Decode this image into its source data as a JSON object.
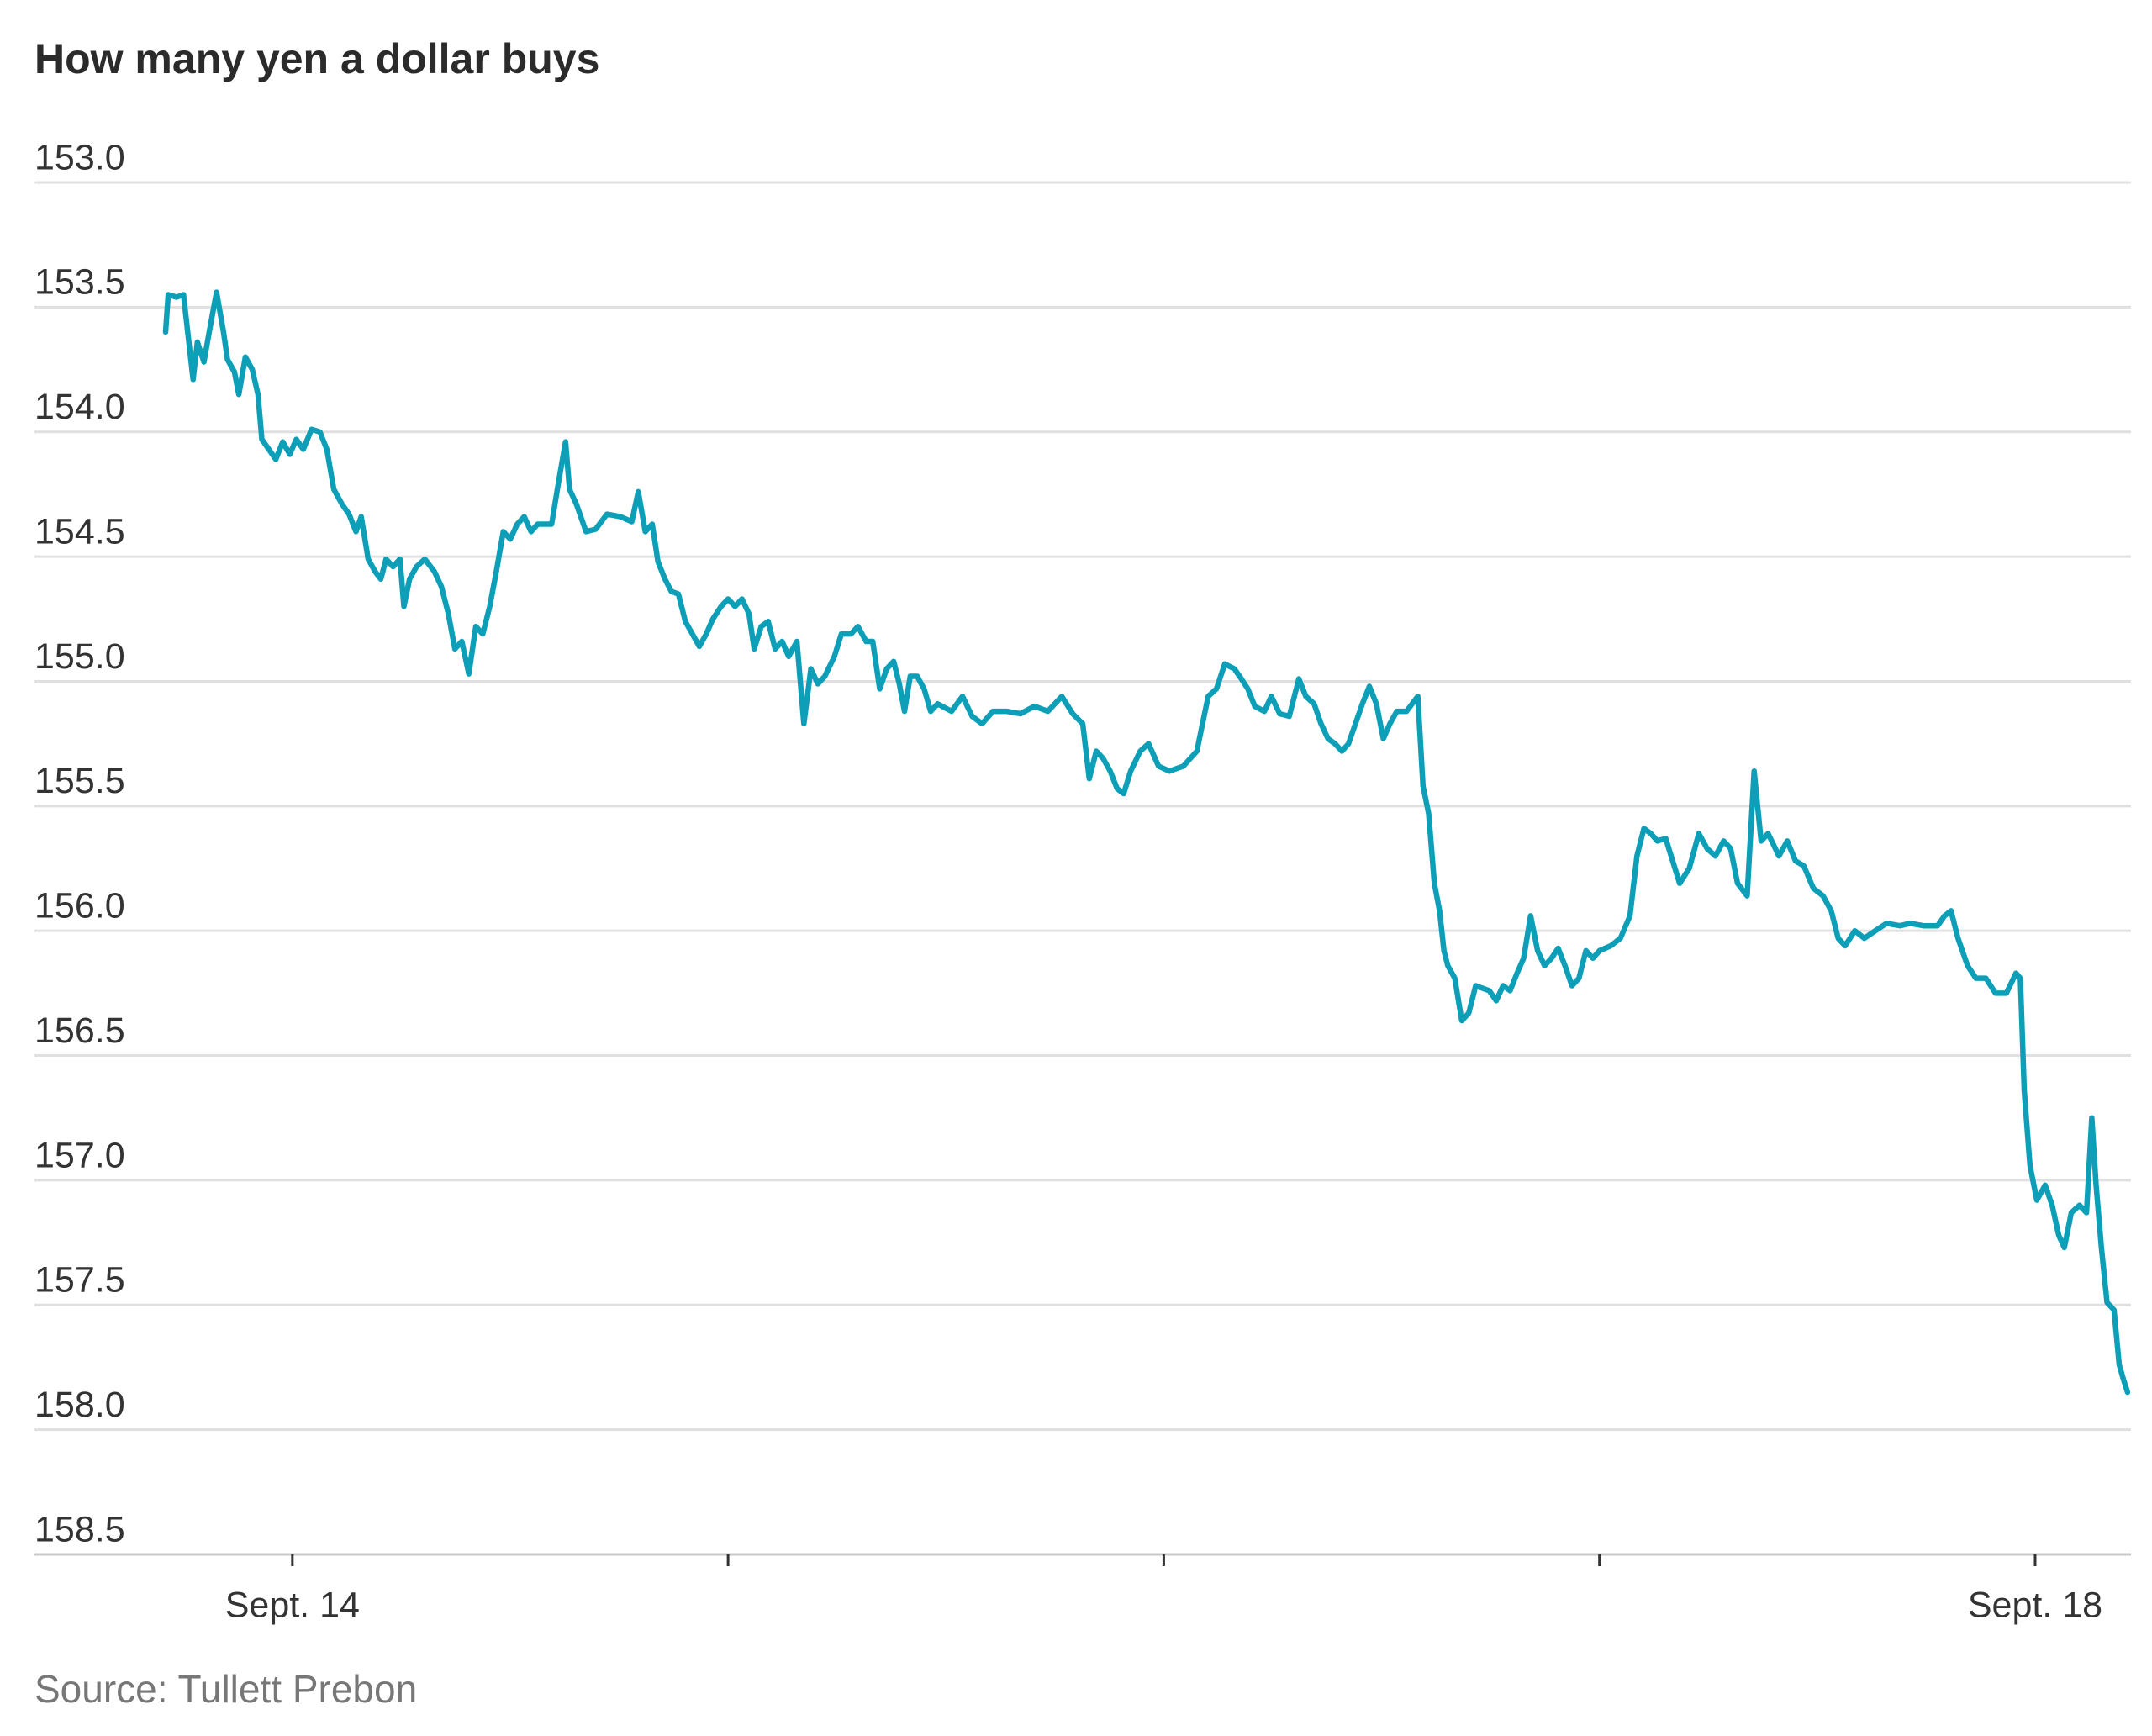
{
  "chart_data": {
    "type": "line",
    "title": "How many yen a dollar buys",
    "source": "Source: Tullett Prebon",
    "color": "#0e9fb8",
    "grid": true,
    "y_reversed": true,
    "xlim": [
      13.408,
      18.22
    ],
    "xticks": [
      {
        "value": 14,
        "label": "Sept. 14"
      },
      {
        "value": 15,
        "label": null
      },
      {
        "value": 16,
        "label": null
      },
      {
        "value": 17,
        "label": null
      },
      {
        "value": 18,
        "label": "Sept. 18"
      }
    ],
    "ylim": [
      153,
      158.5
    ],
    "yticks": [
      {
        "value": 153,
        "label": "153.0"
      },
      153.5,
      {
        "value": 154,
        "label": "154.0"
      },
      154.5,
      {
        "value": 155,
        "label": "155.0"
      },
      155.5,
      {
        "value": 156,
        "label": "156.0"
      },
      156.5,
      {
        "value": 157,
        "label": "157.0"
      },
      157.5,
      {
        "value": 158,
        "label": "158.0"
      },
      158.5
    ],
    "x": [
      13.709,
      13.715,
      13.734,
      13.75,
      13.763,
      13.772,
      13.782,
      13.797,
      13.81,
      13.826,
      13.842,
      13.851,
      13.867,
      13.877,
      13.892,
      13.908,
      13.921,
      13.93,
      13.946,
      13.962,
      13.978,
      13.994,
      14.009,
      14.025,
      14.044,
      14.063,
      14.079,
      14.095,
      14.114,
      14.13,
      14.146,
      14.158,
      14.174,
      14.19,
      14.203,
      14.215,
      14.231,
      14.247,
      14.256,
      14.269,
      14.285,
      14.304,
      14.326,
      14.342,
      14.358,
      14.373,
      14.389,
      14.405,
      14.421,
      14.437,
      14.453,
      14.468,
      14.484,
      14.5,
      14.516,
      14.532,
      14.548,
      14.563,
      14.595,
      14.611,
      14.627,
      14.636,
      14.652,
      14.674,
      14.696,
      14.722,
      14.753,
      14.779,
      14.794,
      14.81,
      14.826,
      14.839,
      14.855,
      14.87,
      14.886,
      14.902,
      14.918,
      14.934,
      14.95,
      14.965,
      14.984,
      15.0,
      15.016,
      15.032,
      15.048,
      15.06,
      15.076,
      15.092,
      15.108,
      15.124,
      15.139,
      15.158,
      15.174,
      15.19,
      15.206,
      15.222,
      15.244,
      15.26,
      15.282,
      15.298,
      15.317,
      15.332,
      15.348,
      15.364,
      15.38,
      15.393,
      15.405,
      15.418,
      15.434,
      15.45,
      15.465,
      15.481,
      15.513,
      15.538,
      15.56,
      15.583,
      15.608,
      15.639,
      15.671,
      15.703,
      15.734,
      15.766,
      15.791,
      15.814,
      15.829,
      15.845,
      15.861,
      15.877,
      15.893,
      15.908,
      15.924,
      15.946,
      15.965,
      15.988,
      16.013,
      16.045,
      16.076,
      16.089,
      16.102,
      16.121,
      16.14,
      16.162,
      16.178,
      16.193,
      16.209,
      16.231,
      16.247,
      16.266,
      16.288,
      16.31,
      16.326,
      16.345,
      16.361,
      16.377,
      16.393,
      16.409,
      16.424,
      16.44,
      16.456,
      16.472,
      16.488,
      16.504,
      16.519,
      16.535,
      16.557,
      16.583,
      16.595,
      16.608,
      16.621,
      16.633,
      16.643,
      16.652,
      16.668,
      16.684,
      16.7,
      16.716,
      16.747,
      16.763,
      16.779,
      16.795,
      16.811,
      16.826,
      16.842,
      16.858,
      16.874,
      16.89,
      16.905,
      16.921,
      16.937,
      16.953,
      16.969,
      16.985,
      17.0,
      17.026,
      17.048,
      17.07,
      17.086,
      17.102,
      17.118,
      17.133,
      17.152,
      17.168,
      17.184,
      17.206,
      17.228,
      17.247,
      17.266,
      17.285,
      17.301,
      17.317,
      17.339,
      17.355,
      17.371,
      17.387,
      17.412,
      17.431,
      17.45,
      17.469,
      17.491,
      17.513,
      17.532,
      17.548,
      17.564,
      17.586,
      17.608,
      17.633,
      17.659,
      17.69,
      17.713,
      17.744,
      17.776,
      17.792,
      17.807,
      17.823,
      17.845,
      17.864,
      17.887,
      17.909,
      17.934,
      17.956,
      17.966,
      17.975,
      17.988,
      18.004,
      18.023,
      18.039,
      18.054,
      18.067,
      18.083,
      18.102,
      18.118,
      18.13,
      18.14,
      18.152,
      18.165,
      18.181,
      18.193,
      18.203,
      18.212
    ],
    "values": [
      153.6,
      153.45,
      153.46,
      153.45,
      153.65,
      153.79,
      153.64,
      153.72,
      153.59,
      153.44,
      153.6,
      153.71,
      153.76,
      153.85,
      153.7,
      153.75,
      153.85,
      154.03,
      154.07,
      154.11,
      154.04,
      154.09,
      154.03,
      154.07,
      153.99,
      154.0,
      154.07,
      154.23,
      154.29,
      154.33,
      154.4,
      154.34,
      154.51,
      154.56,
      154.59,
      154.51,
      154.54,
      154.51,
      154.7,
      154.59,
      154.54,
      154.51,
      154.56,
      154.62,
      154.73,
      154.87,
      154.84,
      154.97,
      154.78,
      154.81,
      154.7,
      154.56,
      154.4,
      154.43,
      154.37,
      154.34,
      154.4,
      154.37,
      154.37,
      154.2,
      154.04,
      154.23,
      154.29,
      154.4,
      154.39,
      154.33,
      154.34,
      154.36,
      154.24,
      154.4,
      154.37,
      154.52,
      154.59,
      154.64,
      154.65,
      154.76,
      154.81,
      154.86,
      154.81,
      154.75,
      154.7,
      154.67,
      154.7,
      154.67,
      154.73,
      154.87,
      154.78,
      154.76,
      154.87,
      154.84,
      154.9,
      154.84,
      155.17,
      154.95,
      155.01,
      154.98,
      154.9,
      154.81,
      154.81,
      154.78,
      154.84,
      154.84,
      155.03,
      154.95,
      154.92,
      155.01,
      155.12,
      154.98,
      154.98,
      155.03,
      155.12,
      155.09,
      155.12,
      155.06,
      155.14,
      155.17,
      155.12,
      155.12,
      155.13,
      155.1,
      155.12,
      155.06,
      155.13,
      155.17,
      155.39,
      155.28,
      155.31,
      155.36,
      155.43,
      155.45,
      155.36,
      155.28,
      155.25,
      155.34,
      155.36,
      155.34,
      155.28,
      155.17,
      155.06,
      155.03,
      154.93,
      154.95,
      154.99,
      155.03,
      155.1,
      155.12,
      155.06,
      155.13,
      155.14,
      154.99,
      155.06,
      155.09,
      155.17,
      155.23,
      155.25,
      155.28,
      155.25,
      155.17,
      155.09,
      155.02,
      155.09,
      155.23,
      155.17,
      155.12,
      155.12,
      155.06,
      155.42,
      155.53,
      155.81,
      155.92,
      156.08,
      156.14,
      156.19,
      156.36,
      156.33,
      156.22,
      156.24,
      156.28,
      156.22,
      156.24,
      156.17,
      156.11,
      155.94,
      156.08,
      156.14,
      156.11,
      156.07,
      156.14,
      156.22,
      156.19,
      156.08,
      156.11,
      156.08,
      156.06,
      156.03,
      155.94,
      155.7,
      155.59,
      155.61,
      155.64,
      155.63,
      155.72,
      155.81,
      155.75,
      155.61,
      155.67,
      155.7,
      155.64,
      155.67,
      155.81,
      155.86,
      155.36,
      155.64,
      155.61,
      155.7,
      155.64,
      155.72,
      155.74,
      155.83,
      155.86,
      155.92,
      156.03,
      156.06,
      156.0,
      156.03,
      156.0,
      155.97,
      155.98,
      155.97,
      155.98,
      155.98,
      155.94,
      155.92,
      156.03,
      156.14,
      156.19,
      156.19,
      156.25,
      156.25,
      156.17,
      156.19,
      156.64,
      156.94,
      157.08,
      157.02,
      157.1,
      157.22,
      157.27,
      157.13,
      157.1,
      157.13,
      156.75,
      157.02,
      157.27,
      157.49,
      157.52,
      157.74,
      157.8,
      157.85
    ]
  }
}
